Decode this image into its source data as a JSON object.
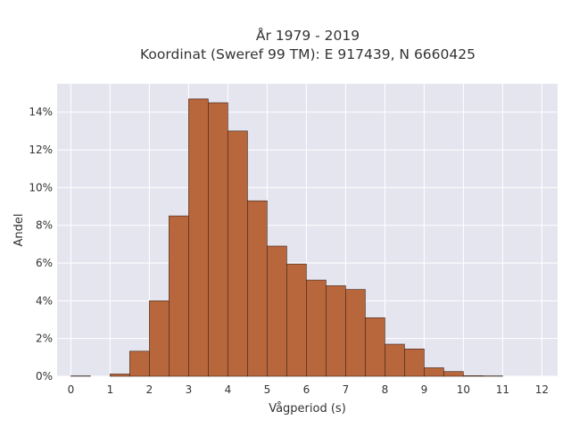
{
  "chart_data": {
    "type": "bar",
    "title_lines": [
      "År 1979 - 2019",
      "Koordinat (Sweref 99 TM): E 917439, N 6660425"
    ],
    "xlabel": "Vågperiod (s)",
    "ylabel": "Andel",
    "bin_width": 0.5,
    "bin_starts": [
      0,
      0.5,
      1,
      1.5,
      2,
      2.5,
      3,
      3.5,
      4,
      4.5,
      5,
      5.5,
      6,
      6.5,
      7,
      7.5,
      8,
      8.5,
      9,
      9.5,
      10,
      10.5,
      11,
      11.5,
      12
    ],
    "values": [
      0.02,
      0.0,
      0.12,
      1.33,
      4.0,
      8.5,
      14.7,
      14.5,
      13.0,
      9.3,
      6.9,
      5.95,
      5.1,
      4.8,
      4.6,
      3.1,
      1.7,
      1.45,
      0.45,
      0.25,
      0.03,
      0.02,
      0.0,
      0.0,
      0.0
    ],
    "xlim": [
      -0.35,
      12.4
    ],
    "ylim": [
      0,
      15.5
    ],
    "x_ticks": [
      0,
      1,
      2,
      3,
      4,
      5,
      6,
      7,
      8,
      9,
      10,
      11,
      12
    ],
    "x_tick_labels": [
      "0",
      "1",
      "2",
      "3",
      "4",
      "5",
      "6",
      "7",
      "8",
      "9",
      "10",
      "11",
      "12"
    ],
    "y_ticks": [
      0,
      2,
      4,
      6,
      8,
      10,
      12,
      14
    ],
    "y_tick_labels": [
      "0%",
      "2%",
      "4%",
      "6%",
      "8%",
      "10%",
      "12%",
      "14%"
    ],
    "grid": true,
    "colors": {
      "bar_fill": "#b8663c",
      "bar_stroke": "#3d2418",
      "plot_background": "#e5e5f0",
      "grid": "#ffffff",
      "text": "#333333"
    }
  }
}
